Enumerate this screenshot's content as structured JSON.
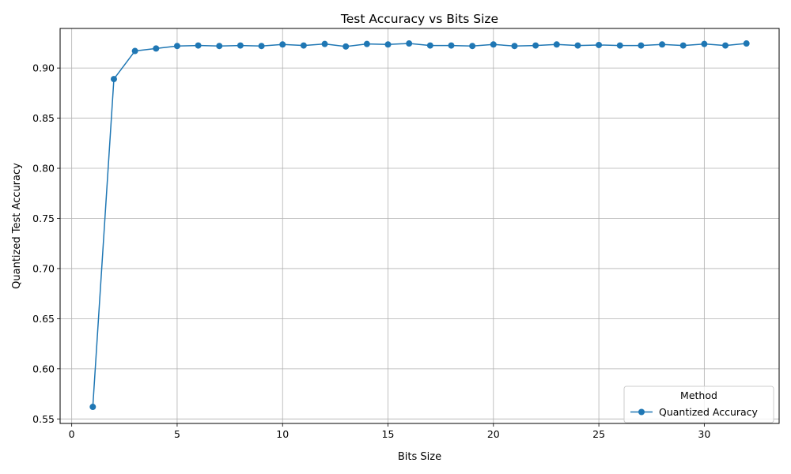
{
  "chart_data": {
    "type": "line",
    "title": "Test Accuracy vs Bits Size",
    "xlabel": "Bits Size",
    "ylabel": "Quantized Test Accuracy",
    "xlim": [
      -0.55,
      33.55
    ],
    "ylim": [
      0.5455,
      0.9395
    ],
    "xticks": [
      0,
      5,
      10,
      15,
      20,
      25,
      30
    ],
    "yticks": [
      0.55,
      0.6,
      0.65,
      0.7,
      0.75,
      0.8,
      0.85,
      0.9
    ],
    "grid": true,
    "legend": {
      "title": "Method",
      "position": "lower-right"
    },
    "series": [
      {
        "name": "Quantized Accuracy",
        "color": "#1f77b4",
        "marker": "circle",
        "x": [
          1,
          2,
          3,
          4,
          5,
          6,
          7,
          8,
          9,
          10,
          11,
          12,
          13,
          14,
          15,
          16,
          17,
          18,
          19,
          20,
          21,
          22,
          23,
          24,
          25,
          26,
          27,
          28,
          29,
          30,
          31,
          32
        ],
        "y": [
          0.562,
          0.889,
          0.917,
          0.9195,
          0.922,
          0.9225,
          0.922,
          0.9225,
          0.922,
          0.9235,
          0.9225,
          0.924,
          0.9215,
          0.924,
          0.9235,
          0.9245,
          0.9225,
          0.9225,
          0.922,
          0.9235,
          0.922,
          0.9225,
          0.9235,
          0.9225,
          0.923,
          0.9225,
          0.9225,
          0.9235,
          0.9225,
          0.924,
          0.9225,
          0.9245
        ]
      }
    ]
  }
}
